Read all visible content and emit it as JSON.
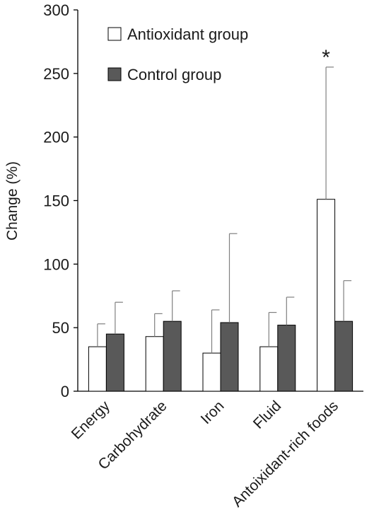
{
  "chart_data": {
    "type": "bar",
    "categories": [
      "Energy",
      "Carbohydrate",
      "Iron",
      "Fluid",
      "Antoixidant-rich foods"
    ],
    "series": [
      {
        "name": "Antioxidant group",
        "color": "#ffffff",
        "values": [
          35,
          43,
          30,
          35,
          151
        ],
        "error_upper": [
          53,
          61,
          64,
          62,
          255
        ]
      },
      {
        "name": "Control group",
        "color": "#595959",
        "values": [
          45,
          55,
          54,
          52,
          55
        ],
        "error_upper": [
          70,
          79,
          124,
          74,
          87
        ]
      }
    ],
    "ylabel": "Change (%)",
    "xlabel": "",
    "title": "",
    "ylim": [
      0,
      300
    ],
    "yticks": [
      0,
      50,
      100,
      150,
      200,
      250,
      300
    ],
    "grid": false,
    "legend_position": "top",
    "annotations": [
      {
        "text": "*",
        "category_index": 4,
        "series_index": 0
      }
    ]
  }
}
